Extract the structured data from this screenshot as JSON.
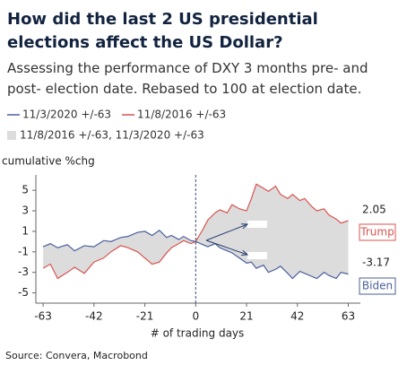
{
  "chart_data": {
    "type": "line",
    "title": "How did the last 2 US presidential elections affect the US Dollar?",
    "subtitle": "Assessing the performance of DXY 3 months pre- and post- election date. Rebased to 100 at election date.",
    "y_label": "cumulative %chg",
    "x_label": "# of trading days",
    "source": "Source: Convera, Macrobond",
    "x": [
      -63,
      -60,
      -57,
      -53,
      -50,
      -46,
      -42,
      -38,
      -35,
      -31,
      -28,
      -24,
      -21,
      -18,
      -15,
      -12,
      -10,
      -7,
      -5,
      -2,
      0,
      3,
      5,
      8,
      10,
      13,
      15,
      18,
      21,
      23,
      25,
      28,
      30,
      33,
      35,
      38,
      40,
      43,
      45,
      48,
      50,
      53,
      55,
      58,
      60,
      63
    ],
    "series": [
      {
        "name": "11/3/2020 +/-63",
        "color": "#4a5f9e",
        "values": [
          -0.5,
          -0.2,
          -0.6,
          -0.3,
          -0.9,
          -0.4,
          -0.5,
          0.1,
          0.0,
          0.4,
          0.5,
          0.9,
          1.0,
          0.6,
          1.1,
          0.4,
          0.6,
          0.2,
          0.5,
          0.1,
          0.0,
          -0.3,
          -0.5,
          -0.2,
          -0.6,
          -0.9,
          -1.1,
          -1.6,
          -2.1,
          -2.0,
          -2.6,
          -2.3,
          -3.0,
          -2.7,
          -2.4,
          -3.1,
          -3.6,
          -2.9,
          -3.1,
          -3.4,
          -3.6,
          -3.0,
          -3.3,
          -3.6,
          -3.0,
          -3.17
        ]
      },
      {
        "name": "11/8/2016 +/-63",
        "color": "#d9534f",
        "values": [
          -2.6,
          -2.2,
          -3.6,
          -3.0,
          -2.5,
          -3.1,
          -2.0,
          -1.6,
          -1.0,
          -0.4,
          -0.6,
          -1.0,
          -1.6,
          -2.2,
          -2.0,
          -1.1,
          -0.6,
          -0.2,
          0.1,
          -0.2,
          0.0,
          1.2,
          2.1,
          2.8,
          3.1,
          2.8,
          3.6,
          3.2,
          3.0,
          4.2,
          5.6,
          5.2,
          4.9,
          5.4,
          4.6,
          4.2,
          4.6,
          4.0,
          4.2,
          3.4,
          3.0,
          3.2,
          2.6,
          2.2,
          1.8,
          2.05
        ]
      }
    ],
    "band": {
      "name": "11/8/2016 +/-63, 11/3/2020 +/-63",
      "color": "#dcdcdc"
    },
    "end_labels": [
      {
        "value_label": "2.05",
        "name": "Trump"
      },
      {
        "value_label": "-3.17",
        "name": "Biden"
      }
    ],
    "xlim": [
      -66,
      68
    ],
    "xticks": [
      -63,
      -42,
      -21,
      0,
      21,
      42,
      63
    ],
    "ylim": [
      -6,
      6.5
    ],
    "yticks": [
      5,
      3,
      1,
      -1,
      -3,
      -5
    ],
    "grid": false
  }
}
